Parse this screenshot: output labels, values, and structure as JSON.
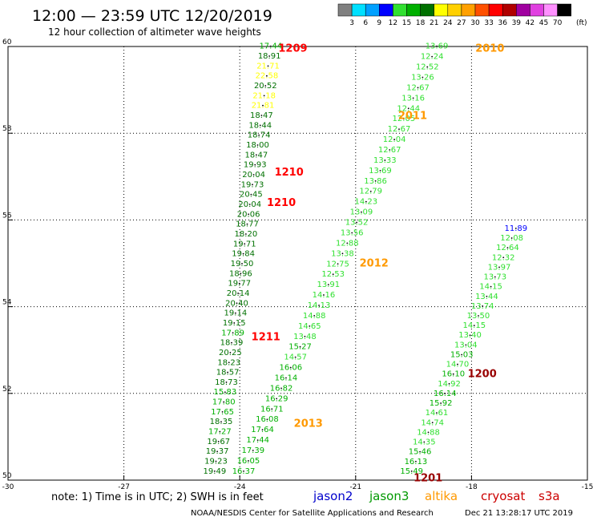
{
  "header": {
    "title": "12:00 — 23:59 UTC 12/20/2019",
    "subtitle": "12 hour collection of altimeter wave heights"
  },
  "legend": {
    "unit": "(ft)",
    "labels": [
      "3",
      "6",
      "9",
      "12",
      "15",
      "18",
      "21",
      "24",
      "27",
      "30",
      "33",
      "36",
      "39",
      "42",
      "45",
      "70"
    ],
    "colors": [
      "#808080",
      "#00e0ff",
      "#00a0ff",
      "#0000ff",
      "#30e030",
      "#00b000",
      "#007000",
      "#ffff00",
      "#ffd000",
      "#ffa000",
      "#ff5000",
      "#ff0000",
      "#b00000",
      "#a000a0",
      "#e040e0",
      "#ff90ff",
      "#000000"
    ]
  },
  "footer": {
    "note": "note: 1) Time is in UTC; 2) SWH is in feet",
    "satellites": [
      {
        "name": "jason2",
        "color": "#0000cc"
      },
      {
        "name": "jason3",
        "color": "#009900"
      },
      {
        "name": "altika",
        "color": "#ff9900"
      },
      {
        "name": "cryosat",
        "color": "#cc0000"
      },
      {
        "name": "s3a",
        "color": "#cc0000"
      }
    ],
    "credit": "NOAA/NESDIS Center for Satellite Applications and Research",
    "timestamp": "Dec 21 13:28:17 UTC 2019"
  },
  "chart_data": {
    "type": "scatter",
    "xlim": [
      -30,
      -15
    ],
    "ylim": [
      50,
      60
    ],
    "xticks": [
      "-30",
      "-27",
      "-24",
      "-21",
      "-18",
      "-15"
    ],
    "yticks": [
      "50",
      "52",
      "54",
      "56",
      "58",
      "60"
    ],
    "grid": true,
    "pass_labels": [
      {
        "text": "1209",
        "lon": -23.0,
        "lat": 59.95,
        "color": "#ff0000"
      },
      {
        "text": "1210",
        "lon": -23.1,
        "lat": 57.1,
        "color": "#ff0000"
      },
      {
        "text": "1210",
        "lon": -23.3,
        "lat": 56.4,
        "color": "#ff0000"
      },
      {
        "text": "1211",
        "lon": -23.7,
        "lat": 53.3,
        "color": "#ff0000"
      },
      {
        "text": "2010",
        "lon": -17.9,
        "lat": 59.95,
        "color": "#ff9900"
      },
      {
        "text": "2011",
        "lon": -19.9,
        "lat": 58.4,
        "color": "#ff9900"
      },
      {
        "text": "2012",
        "lon": -20.9,
        "lat": 55.0,
        "color": "#ff9900"
      },
      {
        "text": "2013",
        "lon": -22.6,
        "lat": 51.3,
        "color": "#ff9900"
      },
      {
        "text": "1200",
        "lon": -18.1,
        "lat": 52.45,
        "color": "#990000"
      },
      {
        "text": "1201",
        "lon": -19.5,
        "lat": 50.05,
        "color": "#990000"
      }
    ],
    "tracks": [
      {
        "lon_top": -23.2,
        "lon_bottom": -24.65,
        "lat_top": 59.95,
        "lat_bottom": 50.15,
        "values": [
          "17.44",
          "18.91",
          "21.71",
          "22.58",
          "20.52",
          "21.18",
          "21.81",
          "18.47",
          "18.44",
          "18.74",
          "18.00",
          "18.47",
          "19.93",
          "20.04",
          "19.73",
          "20.45",
          "20.04",
          "20.06",
          "18.77",
          "18.20",
          "19.71",
          "19.84",
          "19.50",
          "18.96",
          "19.77",
          "20.14",
          "20.40",
          "19.14",
          "19.15",
          "17.89",
          "18.39",
          "20.25",
          "18.23",
          "18.57",
          "18.73",
          "15.83",
          "17.80",
          "17.65",
          "18.35",
          "17.27",
          "19.67",
          "19.37",
          "19.23",
          "19.49"
        ]
      },
      {
        "lon_top": -18.9,
        "lon_bottom": -23.9,
        "lat_top": 59.95,
        "lat_bottom": 50.15,
        "values": [
          "13.69",
          "12.24",
          "12.52",
          "13.26",
          "12.67",
          "13.16",
          "12.44",
          "12.05",
          "12.67",
          "12.04",
          "12.67",
          "13.33",
          "13.69",
          "13.86",
          "12.79",
          "14.23",
          "13.09",
          "13.52",
          "13.56",
          "12.88",
          "13.38",
          "12.75",
          "12.53",
          "13.91",
          "14.16",
          "14.13",
          "14.88",
          "14.65",
          "13.48",
          "15.27",
          "14.57",
          "16.06",
          "16.14",
          "16.82",
          "16.29",
          "16.71",
          "16.08",
          "17.64",
          "17.44",
          "17.39",
          "16.05",
          "16.37"
        ]
      },
      {
        "lon_top": -16.85,
        "lon_bottom": -19.55,
        "lat_top": 55.75,
        "lat_bottom": 50.15,
        "values": [
          "11.89",
          "12.08",
          "12.64",
          "12.32",
          "13.97",
          "13.73",
          "14.15",
          "13.44",
          "13.74",
          "13.50",
          "14.15",
          "13.40",
          "13.04",
          "15.03",
          "14.70",
          "16.10",
          "14.92",
          "16.14",
          "15.92",
          "14.61",
          "14.74",
          "14.88",
          "14.35",
          "15.46",
          "16.13",
          "15.49"
        ]
      }
    ]
  }
}
